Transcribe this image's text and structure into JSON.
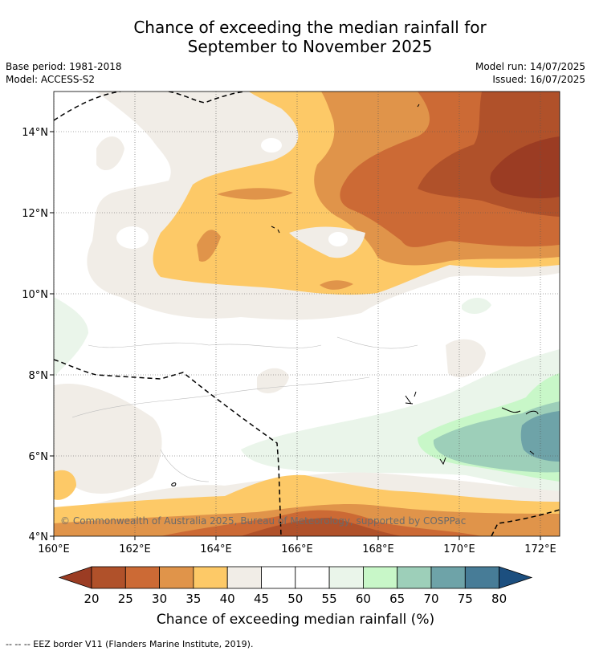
{
  "title_line1": "Chance of exceeding the median rainfall for",
  "title_line2": "September to November 2025",
  "base_period": "Base period: 1981-2018",
  "model": "Model: ACCESS-S2",
  "model_run": "Model run: 14/07/2025",
  "issued": "Issued: 16/07/2025",
  "copyright": "© Commonwealth of Australia 2025, Bureau of Meteorology, supported by COSPPac",
  "footnote": "-- -- -- EEZ border V11 (Flanders Marine Institute, 2019).",
  "colorbar": {
    "label": "Chance of exceeding median rainfall (%)",
    "ticks": [
      "20",
      "25",
      "30",
      "35",
      "40",
      "45",
      "50",
      "55",
      "60",
      "65",
      "70",
      "75",
      "80"
    ],
    "colors": [
      "#b0512a",
      "#cc6a35",
      "#e0944a",
      "#fdc967",
      "#f1ede7",
      "#ffffff",
      "#ffffff",
      "#eaf5ea",
      "#c8f7c8",
      "#9dcfb9",
      "#6ea3a8",
      "#477c97"
    ],
    "low_color": "#9b3c23",
    "high_color": "#1c4f7f"
  },
  "chart_data": {
    "type": "map",
    "x_ticks": [
      "160°E",
      "162°E",
      "164°E",
      "166°E",
      "168°E",
      "170°E",
      "172°E"
    ],
    "y_ticks": [
      "14°N",
      "12°N",
      "10°N",
      "8°N",
      "6°N",
      "4°N"
    ],
    "xlim": [
      160,
      172.5
    ],
    "ylim": [
      4,
      15
    ],
    "grid": true
  }
}
